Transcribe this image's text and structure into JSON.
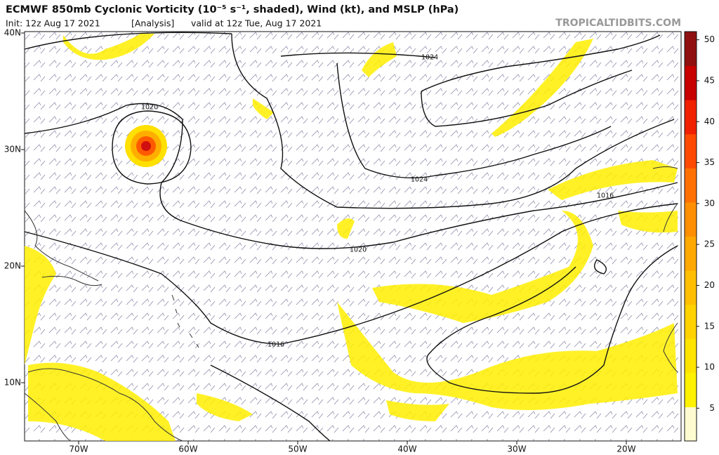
{
  "header": {
    "title": "ECMWF 850mb Cyclonic Vorticity (10⁻⁵ s⁻¹, shaded), Wind (kt), and MSLP (hPa)",
    "init": "Init: 12z Aug 17 2021",
    "run": "[Analysis]",
    "valid": "valid at 12z Tue, Aug 17 2021",
    "site": "TROPICALTIDBITS.COM"
  },
  "map": {
    "lon_labels": [
      {
        "value": -70,
        "label": "70W"
      },
      {
        "value": -60,
        "label": "60W"
      },
      {
        "value": -50,
        "label": "50W"
      },
      {
        "value": -40,
        "label": "40W"
      },
      {
        "value": -30,
        "label": "30W"
      },
      {
        "value": -20,
        "label": "20W"
      }
    ],
    "lat_labels": [
      {
        "value": 40,
        "label": "40N"
      },
      {
        "value": 30,
        "label": "30N"
      },
      {
        "value": 20,
        "label": "20N"
      },
      {
        "value": 10,
        "label": "10N"
      }
    ],
    "contour_labels": [
      "1024",
      "1020",
      "1024",
      "1016",
      "1020",
      "1016"
    ]
  },
  "colorbar": {
    "range": [
      1,
      51
    ],
    "ticks": [
      5,
      10,
      15,
      20,
      25,
      30,
      35,
      40,
      45,
      50
    ],
    "colors": [
      "#fffbd0",
      "#fff200",
      "#ffe400",
      "#ffd200",
      "#ffbf00",
      "#ffa800",
      "#ff8f00",
      "#ff7000",
      "#ff4a00",
      "#f02000",
      "#c80000",
      "#901010"
    ]
  }
}
